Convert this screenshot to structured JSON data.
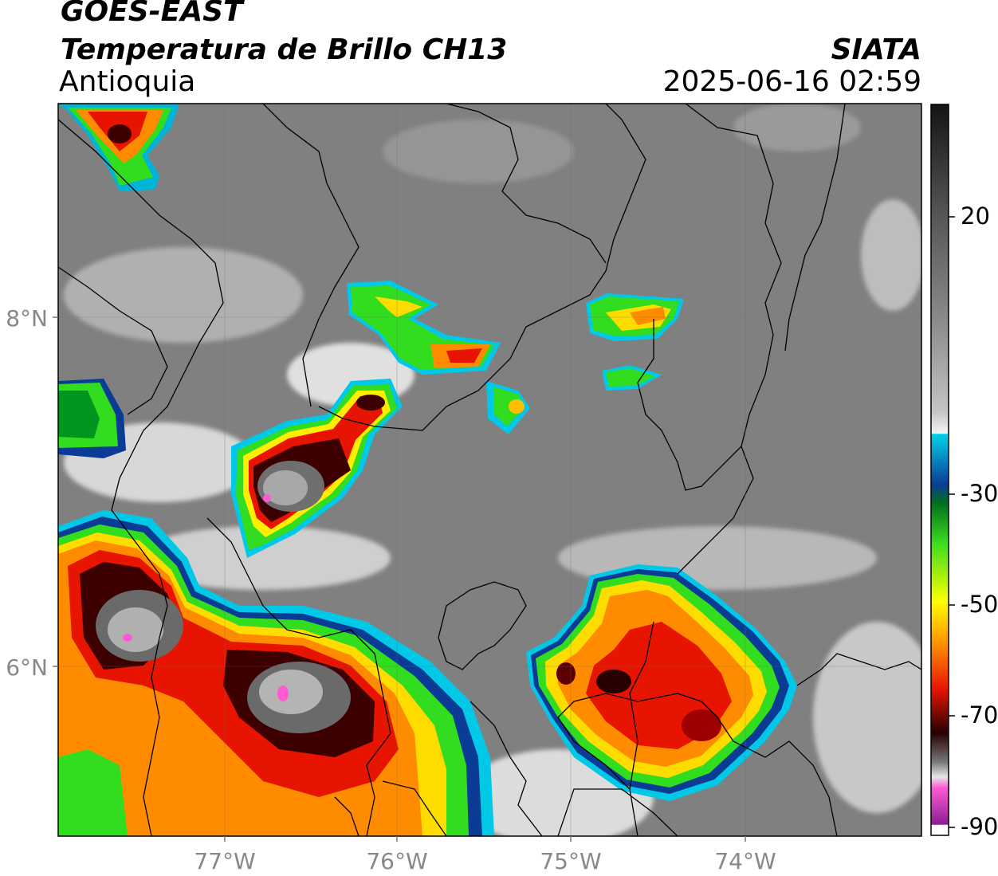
{
  "header": {
    "title_line1": "GOES-EAST",
    "title_line2": "Temperatura de Brillo CH13",
    "region": "Antioquia",
    "brand": "SIATA",
    "datetime": "2025-06-16 02:59"
  },
  "map": {
    "lat_labels": [
      "8°N",
      "6°N"
    ],
    "lon_labels": [
      "77°W",
      "76°W",
      "75°W",
      "74°W"
    ]
  },
  "colorbar": {
    "labels": [
      "20",
      "-30",
      "-50",
      "-70",
      "-90"
    ],
    "colors": [
      "#1a1a1a",
      "#555555",
      "#8a8a8a",
      "#bdbdbd",
      "#f2f2f2",
      "#00c8e6",
      "#0a3c96",
      "#00961e",
      "#32dc1e",
      "#ffff00",
      "#ff8c00",
      "#e61400",
      "#3c0000",
      "#dcdcdc",
      "#ff5ad2",
      "#8c1e96"
    ]
  }
}
